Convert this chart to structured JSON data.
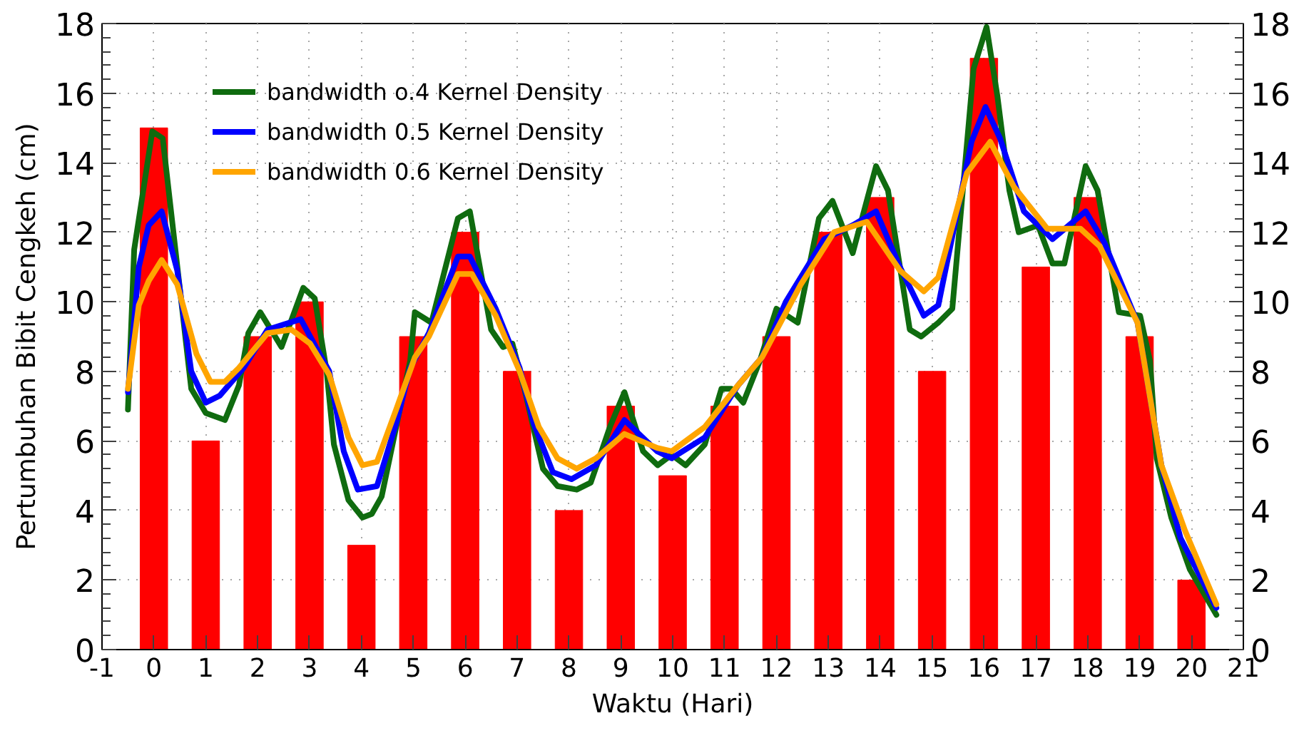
{
  "chart_data": {
    "type": "bar",
    "xlabel": "Waktu (Hari)",
    "ylabel": "Pertumbuhan Bibit Cengkeh (cm)",
    "x": [
      0,
      1,
      2,
      3,
      4,
      5,
      6,
      7,
      8,
      9,
      10,
      11,
      12,
      13,
      14,
      15,
      16,
      17,
      18,
      19,
      20
    ],
    "xlim": [
      -1,
      21
    ],
    "xticks": [
      -1,
      0,
      1,
      2,
      3,
      4,
      5,
      6,
      7,
      8,
      9,
      10,
      11,
      12,
      13,
      14,
      15,
      16,
      17,
      18,
      19,
      20,
      21
    ],
    "ylim": [
      0,
      18
    ],
    "yticks": [
      0,
      2,
      4,
      6,
      8,
      10,
      12,
      14,
      16,
      18
    ],
    "y2lim": [
      0,
      18
    ],
    "y2ticks": [
      0,
      2,
      4,
      6,
      8,
      10,
      12,
      14,
      16,
      18
    ],
    "grid": true,
    "legend": "top left",
    "series": [
      {
        "color": "#ff0000",
        "values": [
          15,
          6,
          9,
          10,
          3,
          9,
          12,
          8,
          4,
          7,
          5,
          7,
          9,
          12,
          13,
          8,
          17,
          11,
          13,
          9,
          2
        ]
      },
      {
        "type": "line",
        "name": "bandwidth o.4 Kernel Density",
        "color": "#0f6b0f",
        "x": [
          -0.5,
          -0.38,
          -0.03,
          0.17,
          0.72,
          1.0,
          1.37,
          1.64,
          1.82,
          2.05,
          2.46,
          2.88,
          3.1,
          3.33,
          3.47,
          3.75,
          4.02,
          4.2,
          4.39,
          4.67,
          4.94,
          5.03,
          5.35,
          5.86,
          6.09,
          6.5,
          6.73,
          6.91,
          7.14,
          7.5,
          7.78,
          8.15,
          8.42,
          8.79,
          9.07,
          9.43,
          9.71,
          9.98,
          10.25,
          10.62,
          10.94,
          11.13,
          11.36,
          11.68,
          12.0,
          12.41,
          12.82,
          13.08,
          13.47,
          13.92,
          14.15,
          14.57,
          14.79,
          15.12,
          15.39,
          15.8,
          16.05,
          16.26,
          16.49,
          16.67,
          17.04,
          17.32,
          17.55,
          17.96,
          18.19,
          18.6,
          19.01,
          19.2,
          19.33,
          19.61,
          19.97,
          20.48
        ],
        "values": [
          6.9,
          11.5,
          14.9,
          14.7,
          7.5,
          6.8,
          6.6,
          7.6,
          9.1,
          9.7,
          8.7,
          10.4,
          10.1,
          8.0,
          5.9,
          4.3,
          3.8,
          3.9,
          4.4,
          6.4,
          8.3,
          9.7,
          9.4,
          12.4,
          12.6,
          9.2,
          8.7,
          8.8,
          7.5,
          5.2,
          4.7,
          4.6,
          4.8,
          6.4,
          7.4,
          5.7,
          5.3,
          5.6,
          5.3,
          5.9,
          7.5,
          7.5,
          7.1,
          8.3,
          9.8,
          9.4,
          12.4,
          12.9,
          11.4,
          13.9,
          13.2,
          9.2,
          9.0,
          9.4,
          9.8,
          16.7,
          17.9,
          15.9,
          13.2,
          12.0,
          12.2,
          11.1,
          11.1,
          13.9,
          13.2,
          9.7,
          9.6,
          8.3,
          5.5,
          3.8,
          2.3,
          1.0
        ]
      },
      {
        "type": "line",
        "name": "bandwidth 0.5 Kernel Density",
        "color": "#0000ff",
        "x": [
          -0.5,
          -0.29,
          -0.1,
          0.15,
          0.45,
          0.72,
          1.0,
          1.27,
          1.73,
          2.19,
          2.83,
          3.38,
          3.66,
          3.93,
          4.3,
          4.67,
          4.94,
          5.3,
          5.86,
          6.09,
          6.59,
          7.05,
          7.32,
          7.69,
          8.05,
          8.52,
          9.07,
          9.7,
          9.98,
          10.62,
          11.26,
          11.72,
          12.18,
          12.92,
          13.47,
          13.92,
          14.38,
          14.84,
          15.12,
          15.76,
          16.03,
          16.31,
          16.77,
          17.32,
          17.96,
          18.32,
          18.96,
          19.42,
          19.79,
          20.48
        ],
        "values": [
          7.4,
          11.0,
          12.2,
          12.6,
          10.9,
          8.0,
          7.1,
          7.3,
          8.1,
          9.2,
          9.5,
          8.0,
          5.7,
          4.6,
          4.7,
          6.5,
          8.1,
          9.1,
          11.3,
          11.3,
          9.8,
          8.1,
          6.5,
          5.1,
          4.9,
          5.3,
          6.6,
          5.7,
          5.5,
          6.1,
          7.6,
          8.4,
          10.0,
          11.8,
          12.2,
          12.6,
          11.0,
          9.6,
          9.9,
          14.6,
          15.6,
          14.7,
          12.6,
          11.8,
          12.6,
          11.7,
          9.4,
          5.3,
          3.2,
          1.2
        ]
      },
      {
        "type": "line",
        "name": "bandwidth 0.6 Kernel Density",
        "color": "#ffa500",
        "x": [
          -0.5,
          -0.29,
          -0.1,
          0.15,
          0.45,
          0.82,
          1.09,
          1.37,
          1.64,
          2.19,
          2.65,
          3.01,
          3.38,
          3.75,
          4.02,
          4.3,
          4.67,
          5.03,
          5.3,
          5.86,
          6.13,
          6.59,
          7.05,
          7.42,
          7.78,
          8.15,
          8.52,
          9.07,
          9.7,
          9.98,
          10.62,
          11.26,
          11.72,
          12.47,
          13.11,
          13.74,
          14.38,
          14.84,
          15.12,
          15.67,
          16.12,
          16.58,
          17.22,
          17.86,
          18.23,
          18.96,
          19.42,
          19.88,
          20.48
        ],
        "values": [
          7.5,
          9.9,
          10.6,
          11.2,
          10.5,
          8.5,
          7.7,
          7.7,
          8.1,
          9.1,
          9.2,
          8.8,
          7.9,
          6.1,
          5.3,
          5.4,
          6.9,
          8.4,
          9.0,
          10.8,
          10.8,
          9.6,
          8.0,
          6.4,
          5.5,
          5.2,
          5.5,
          6.2,
          5.8,
          5.7,
          6.4,
          7.6,
          8.4,
          10.5,
          12.0,
          12.3,
          10.9,
          10.3,
          10.7,
          13.7,
          14.6,
          13.3,
          12.1,
          12.1,
          11.6,
          9.4,
          5.3,
          3.4,
          1.3
        ]
      }
    ]
  }
}
